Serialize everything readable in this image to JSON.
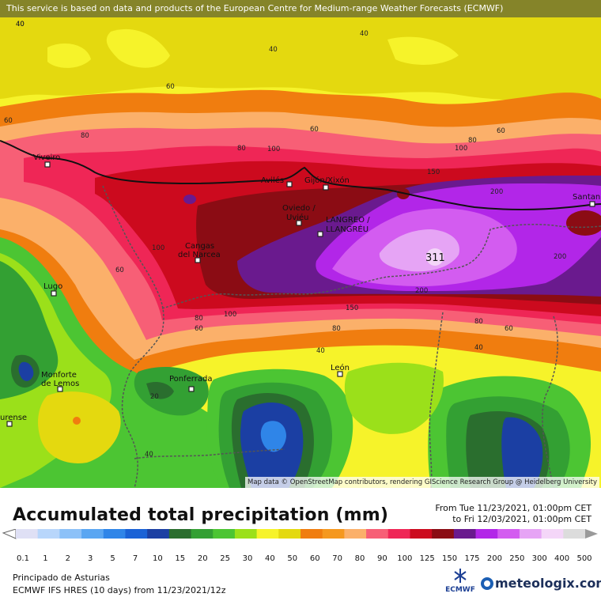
{
  "notice": "This service is based on data and products of the European Centre for Medium-range Weather Forecasts (ECMWF)",
  "attribution": "Map data © OpenStreetMap contributors, rendering GIScience Research Group @ Heidelberg University",
  "title": "Accumulated total precipitation (mm)",
  "period": {
    "from": "From Tue 11/23/2021, 01:00pm CET",
    "to": "to Fri 12/03/2021, 01:00pm CET"
  },
  "scale": {
    "labels": [
      "0.1",
      "1",
      "2",
      "3",
      "5",
      "7",
      "10",
      "15",
      "20",
      "25",
      "30",
      "40",
      "50",
      "60",
      "70",
      "80",
      "90",
      "100",
      "125",
      "150",
      "175",
      "200",
      "250",
      "300",
      "400",
      "500"
    ],
    "colors": [
      "#dfe0f5",
      "#b8d6fb",
      "#8cc1f8",
      "#5aa6f2",
      "#2f85e8",
      "#1a62d6",
      "#1b3fa3",
      "#2a6e2e",
      "#33a033",
      "#4cc533",
      "#9be01a",
      "#f6f32a",
      "#e4d90f",
      "#f07d0f",
      "#f5981f",
      "#fbb06a",
      "#f75f76",
      "#ef2656",
      "#cc0a1e",
      "#8b0c14",
      "#6a1a8e",
      "#b226e8",
      "#d35cf0",
      "#e6a4f5",
      "#f4d6f8",
      "#dcdcdc"
    ]
  },
  "cities": [
    {
      "name": "Viveiro"
    },
    {
      "name": "Avilés"
    },
    {
      "name": "Gijón/Xixón"
    },
    {
      "name": "Oviedo /"
    },
    {
      "name": "Uviéu"
    },
    {
      "name": "LANGREO /"
    },
    {
      "name": "LLANGRÉU"
    },
    {
      "name": "Santan"
    },
    {
      "name": "Cangas"
    },
    {
      "name": "del Narcea"
    },
    {
      "name": "Lugo"
    },
    {
      "name": "Monforte"
    },
    {
      "name": "de Lemos"
    },
    {
      "name": "Ponferrada"
    },
    {
      "name": "León"
    },
    {
      "name": "urense"
    }
  ],
  "peak_value": "311",
  "contour_labels": [
    "40",
    "40",
    "40",
    "60",
    "60",
    "60",
    "60",
    "80",
    "80",
    "80",
    "100",
    "100",
    "150",
    "200",
    "200",
    "200",
    "100",
    "150",
    "100",
    "80",
    "60",
    "80",
    "60",
    "40",
    "40",
    "80",
    "60",
    "40",
    "20",
    "40"
  ],
  "region": "Principado de Asturias",
  "model_line": "ECMWF IFS HRES (10 days) from 11/23/2021/12z",
  "logos": {
    "ecmwf": "ECMWF",
    "meteologix": "meteologix.com"
  },
  "colors": {
    "sea_yellow": "#f6f32a",
    "accent_blue": "#1c5fb4"
  }
}
